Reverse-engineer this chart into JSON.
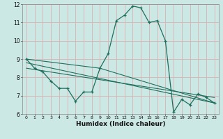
{
  "xlabel": "Humidex (Indice chaleur)",
  "ylabel": "",
  "bg_color": "#cce8e4",
  "grid_color": "#d8b8b8",
  "line_color": "#1e6e5e",
  "xlim": [
    -0.5,
    23.5
  ],
  "ylim": [
    6,
    12
  ],
  "yticks": [
    6,
    7,
    8,
    9,
    10,
    11,
    12
  ],
  "xticks": [
    0,
    1,
    2,
    3,
    4,
    5,
    6,
    7,
    8,
    9,
    10,
    11,
    12,
    13,
    14,
    15,
    16,
    17,
    18,
    19,
    20,
    21,
    22,
    23
  ],
  "series1_x": [
    0,
    1,
    2,
    3,
    4,
    5,
    6,
    7,
    8,
    9,
    10,
    11,
    12,
    13,
    14,
    15,
    16,
    17,
    18,
    19,
    20,
    21,
    22,
    23
  ],
  "series1_y": [
    9.0,
    8.5,
    8.3,
    7.8,
    7.4,
    7.4,
    6.7,
    7.2,
    7.2,
    8.5,
    9.3,
    11.1,
    11.4,
    11.9,
    11.8,
    11.0,
    11.1,
    10.0,
    6.1,
    6.8,
    6.5,
    7.1,
    6.9,
    6.6
  ],
  "series2_x": [
    0,
    9,
    23
  ],
  "series2_y": [
    9.0,
    8.5,
    6.6
  ],
  "series3_x": [
    0,
    23
  ],
  "series3_y": [
    8.8,
    6.6
  ],
  "series4_x": [
    0,
    23
  ],
  "series4_y": [
    8.5,
    6.9
  ]
}
